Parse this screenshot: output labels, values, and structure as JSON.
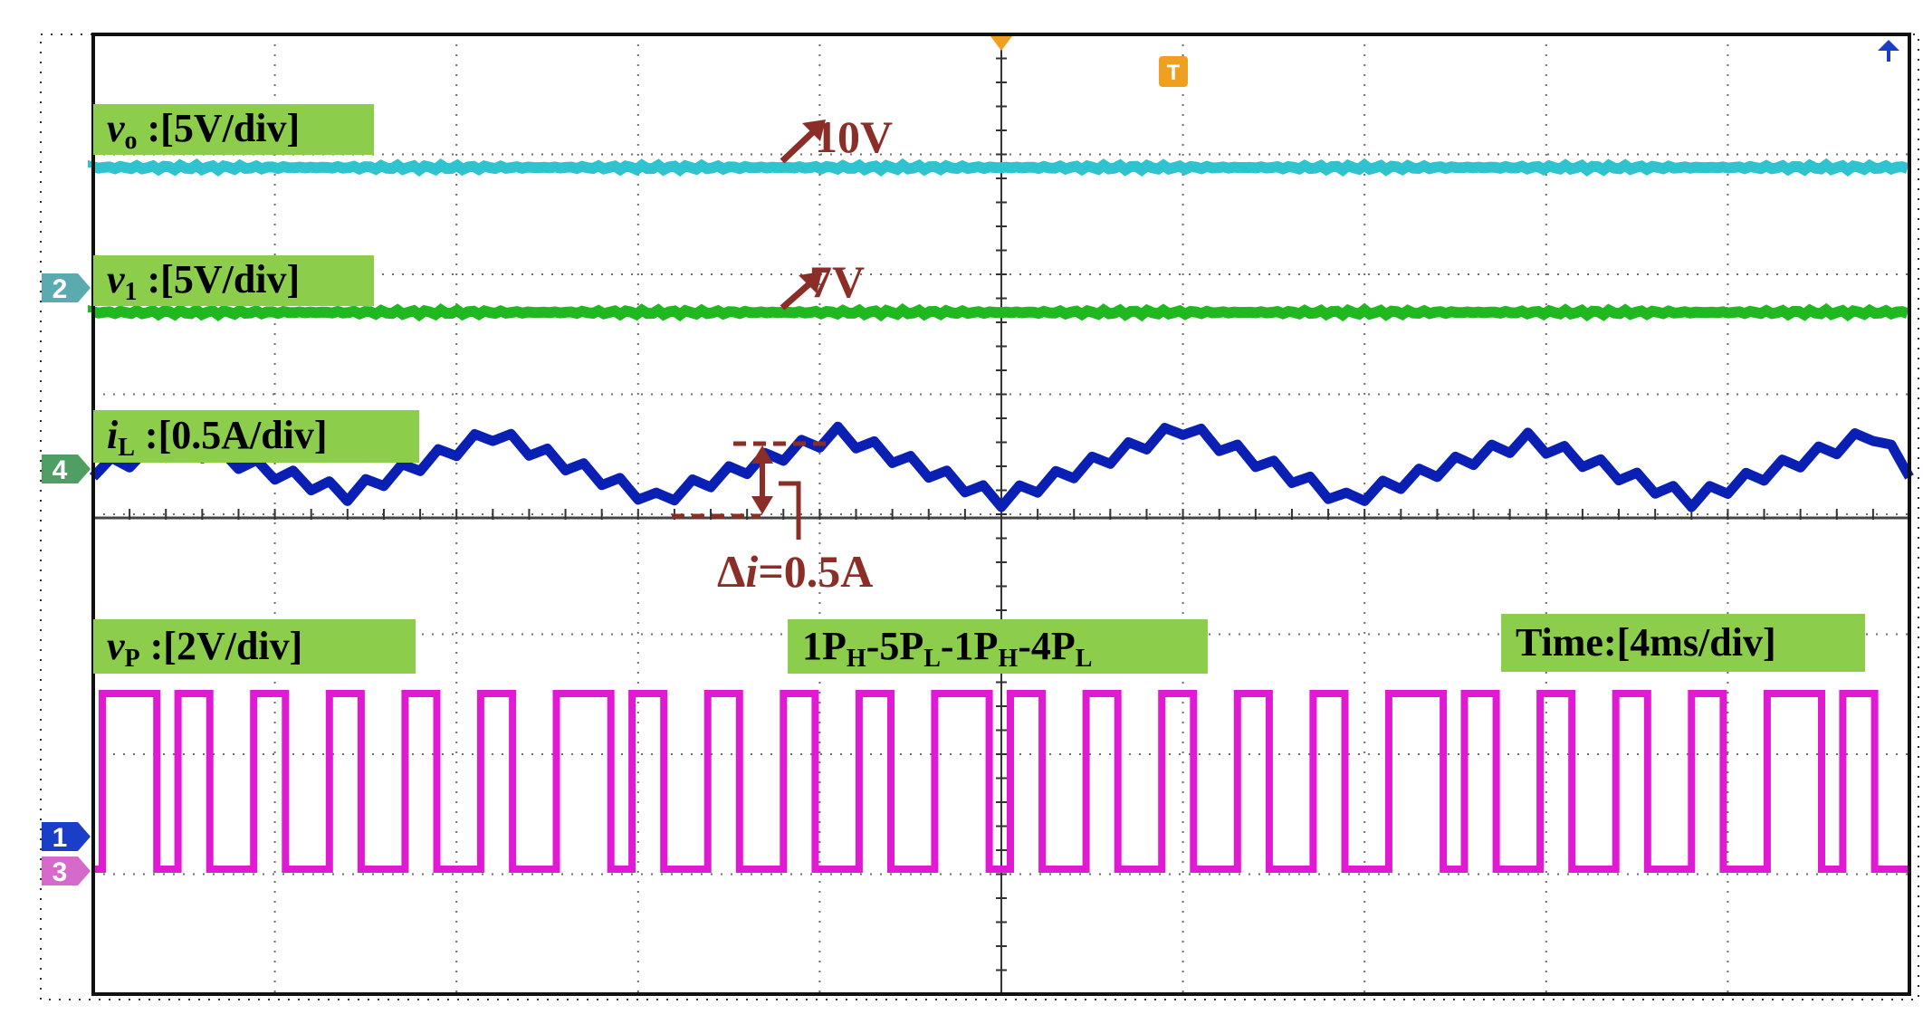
{
  "colors": {
    "vo": "#2ec4cf",
    "v1": "#1fb81f",
    "iL": "#0a1fb4",
    "vP": "#e01ad2",
    "label_bg": "#8ccd4c",
    "annotation": "#8b2e28",
    "grid": "#6e6e6e",
    "trigger": "#f0a020",
    "marker_2": "#5aaab0",
    "marker_4": "#4f9e63",
    "marker_1": "#1a3ec8",
    "marker_3": "#d46ac9"
  },
  "channel_markers": [
    {
      "name": "2",
      "color_key": "marker_2"
    },
    {
      "name": "4",
      "color_key": "marker_4"
    },
    {
      "name": "1",
      "color_key": "marker_1"
    },
    {
      "name": "3",
      "color_key": "marker_3"
    }
  ],
  "trigger": {
    "label": "T"
  },
  "labels": {
    "vo": {
      "sym": "v",
      "sub": "o",
      "rest": " :[5V/div]"
    },
    "v1": {
      "sym": "v",
      "sub": "1",
      "rest": " :[5V/div]"
    },
    "iL": {
      "sym": "i",
      "sub": "L",
      "rest": " :[0.5A/div]"
    },
    "vP": {
      "sym": "v",
      "sub": "P",
      "rest": " :[2V/div]"
    },
    "pattern": {
      "p1": "1P",
      "s1": "H",
      "p2": "-5P",
      "s2": "L",
      "p3": "-1P",
      "s3": "H",
      "p4": "-4P",
      "s4": "L"
    },
    "time": "Time:[4ms/div]"
  },
  "annotations": {
    "vo_value": "10V",
    "v1_value": "7V",
    "ripple": {
      "delta": "Δ",
      "i": "i",
      "rest": "=0.5A"
    }
  },
  "chart_data": {
    "type": "line",
    "title": "",
    "xlabel": "",
    "ylabel": "",
    "time_per_div": "4ms/div",
    "x_divisions": 10,
    "y_divisions": 8,
    "x_unit": "ms",
    "xlim": [
      0,
      40
    ],
    "series": [
      {
        "name": "vo",
        "scale": "5V/div",
        "level": 10,
        "unit": "V"
      },
      {
        "name": "v1",
        "scale": "5V/div",
        "level": 7,
        "unit": "V"
      },
      {
        "name": "iL",
        "scale": "0.5A/div",
        "ripple": 0.5,
        "unit": "A"
      },
      {
        "name": "vP",
        "scale": "2V/div",
        "pattern": "1PH-5PL-1PH-4PL"
      }
    ],
    "il_envelope_divs": [
      [
        0,
        0.25
      ],
      [
        0.5,
        0.45
      ],
      [
        1.4,
        0.05
      ],
      [
        2.2,
        0.55
      ],
      [
        3.1,
        0.0
      ],
      [
        4.1,
        0.55
      ],
      [
        5.0,
        0.0
      ],
      [
        6.0,
        0.6
      ],
      [
        6.9,
        0.0
      ],
      [
        7.9,
        0.5
      ],
      [
        8.8,
        0.0
      ],
      [
        9.8,
        0.55
      ],
      [
        10.0,
        0.25
      ]
    ],
    "vp_sequence": [
      1,
      0,
      0,
      0,
      0,
      0,
      1,
      0,
      0,
      0,
      0
    ]
  }
}
